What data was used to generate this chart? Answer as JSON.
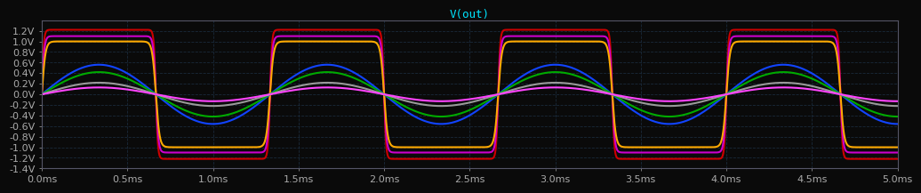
{
  "title": "V(out)",
  "title_color": "#00e5ff",
  "background_color": "#0a0a0a",
  "plot_bg_color": "#0a0a0a",
  "axis_color": "#555566",
  "tick_label_color": "#aaaaaa",
  "xlim": [
    0,
    0.005
  ],
  "ylim": [
    -1.4,
    1.4
  ],
  "yticks": [
    -1.4,
    -1.2,
    -1.0,
    -0.8,
    -0.6,
    -0.4,
    -0.2,
    0.0,
    0.2,
    0.4,
    0.6,
    0.8,
    1.0,
    1.2
  ],
  "ytick_labels": [
    "-1.4V",
    "-1.2V",
    "-1.0V",
    "-0.8V",
    "-0.6V",
    "-0.4V",
    "-0.2V",
    "0.0V",
    "0.2V",
    "0.4V",
    "0.6V",
    "0.8V",
    "1.0V",
    "1.2V"
  ],
  "xticks": [
    0,
    0.0005,
    0.001,
    0.0015,
    0.002,
    0.0025,
    0.003,
    0.0035,
    0.004,
    0.0045,
    0.005
  ],
  "xtick_labels": [
    "0.0ms",
    "0.5ms",
    "1.0ms",
    "1.5ms",
    "2.0ms",
    "2.5ms",
    "3.0ms",
    "3.5ms",
    "4.0ms",
    "4.5ms",
    "5.0ms"
  ],
  "freq": 750,
  "line_params": [
    {
      "color": "#cc0000",
      "drive": 18.0,
      "out_amp": 1.22,
      "lw": 1.5
    },
    {
      "color": "#cc00cc",
      "drive": 14.0,
      "out_amp": 1.1,
      "lw": 1.5
    },
    {
      "color": "#ffaa00",
      "drive": 10.0,
      "out_amp": 1.0,
      "lw": 1.5
    },
    {
      "color": "#1144ff",
      "drive": 1.0,
      "out_amp": 0.56,
      "lw": 1.5
    },
    {
      "color": "#00aa00",
      "drive": 1.0,
      "out_amp": 0.42,
      "lw": 1.5
    },
    {
      "color": "#999999",
      "drive": 1.0,
      "out_amp": 0.22,
      "lw": 1.5
    },
    {
      "color": "#ff44ff",
      "drive": 1.0,
      "out_amp": 0.13,
      "lw": 1.5
    }
  ]
}
